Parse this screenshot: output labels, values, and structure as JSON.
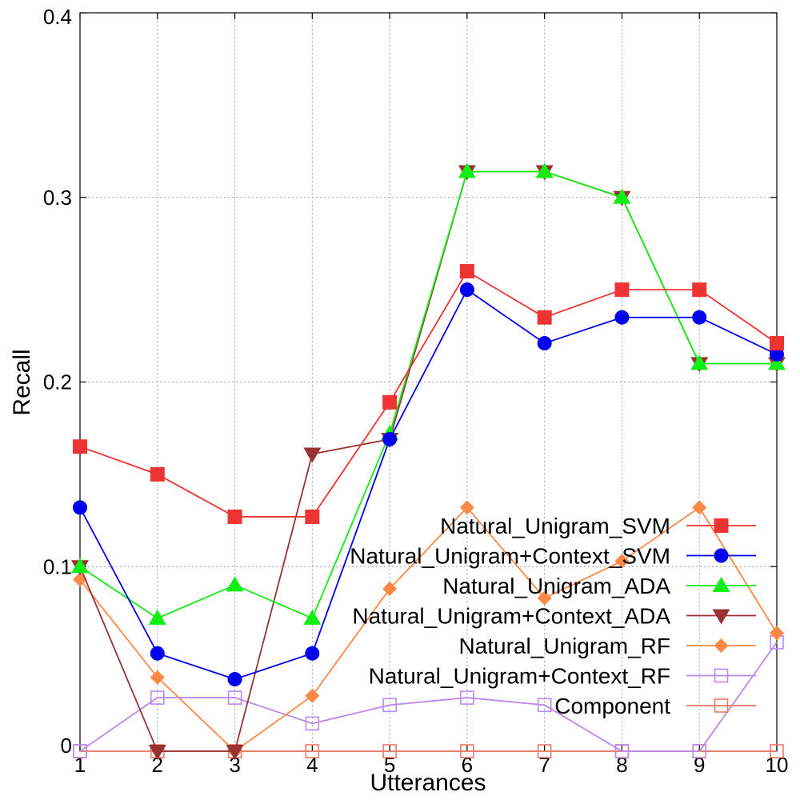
{
  "chart_data": {
    "type": "line",
    "title": "",
    "xlabel": "Utterances",
    "ylabel": "Recall",
    "x": [
      1,
      2,
      3,
      4,
      5,
      6,
      7,
      8,
      9,
      10
    ],
    "xlim": [
      1,
      10
    ],
    "ylim": [
      0,
      0.4
    ],
    "xticks": [
      "1",
      "2",
      "3",
      "4",
      "5",
      "6",
      "7",
      "8",
      "9",
      "10"
    ],
    "yticks": [
      {
        "value": 0,
        "label": "0"
      },
      {
        "value": 0.1,
        "label": "0.1"
      },
      {
        "value": 0.2,
        "label": "0.2"
      },
      {
        "value": 0.3,
        "label": "0.3"
      },
      {
        "value": 0.4,
        "label": "0.4"
      }
    ],
    "grid": true,
    "legend": "bottom-right",
    "series": [
      {
        "name": "Natural_Unigram_SVM",
        "color": "#ee3333",
        "marker": "square-filled",
        "values": [
          0.165,
          0.15,
          0.127,
          0.127,
          0.189,
          0.26,
          0.235,
          0.25,
          0.25,
          0.221
        ]
      },
      {
        "name": "Natural_Unigram+Context_SVM",
        "color": "#0000ee",
        "marker": "circle-filled",
        "values": [
          0.132,
          0.053,
          0.039,
          0.053,
          0.169,
          0.25,
          0.221,
          0.235,
          0.235,
          0.215
        ]
      },
      {
        "name": "Natural_Unigram_ADA",
        "color": "#11ee11",
        "marker": "triangle-up-filled",
        "values": [
          0.1,
          0.072,
          0.09,
          0.072,
          0.172,
          0.314,
          0.314,
          0.3,
          0.21,
          0.21
        ]
      },
      {
        "name": "Natural_Unigram+Context_ADA",
        "color": "#993333",
        "marker": "triangle-down-filled",
        "values": [
          0.1,
          0,
          0,
          0.161,
          0.169,
          0.314,
          0.314,
          0.3,
          0.21,
          0.21
        ]
      },
      {
        "name": "Natural_Unigram_RF",
        "color": "#ff8844",
        "marker": "diamond-filled",
        "values": [
          0.093,
          0.04,
          0,
          0.03,
          0.088,
          0.132,
          0.083,
          0.103,
          0.132,
          0.064
        ]
      },
      {
        "name": "Natural_Unigram+Context_RF",
        "color": "#bb88ee",
        "marker": "square-open",
        "values": [
          0,
          0.029,
          0.029,
          0.015,
          0.025,
          0.029,
          0.025,
          0,
          0,
          0.059
        ]
      },
      {
        "name": "Component",
        "color": "#ee7766",
        "marker": "square-open",
        "values": [
          0,
          0,
          0,
          0,
          0,
          0,
          0,
          0,
          0,
          0
        ]
      }
    ]
  }
}
